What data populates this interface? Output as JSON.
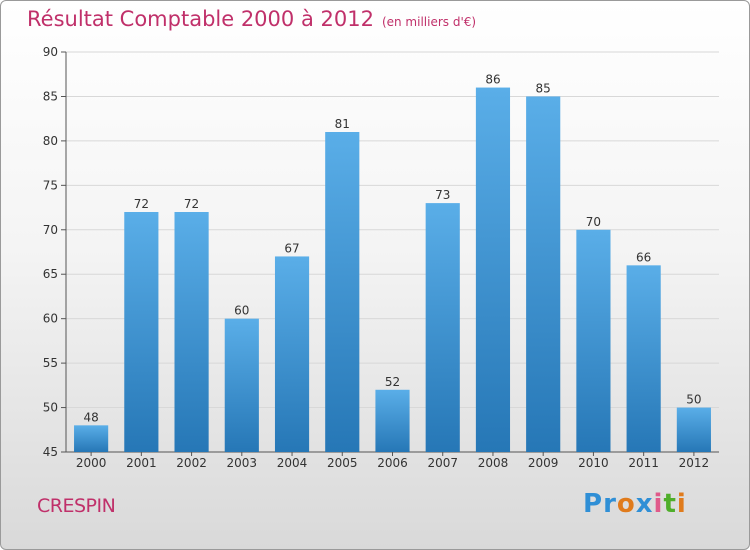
{
  "header": {
    "title": "Résultat Comptable 2000 à 2012",
    "subtitle": "(en milliers d'€)"
  },
  "footer": {
    "city": "CRESPIN",
    "brand": "Proxiti"
  },
  "colors": {
    "title": "#c0306a",
    "bar_top": "#5aaee8",
    "bar_bottom": "#2677b6",
    "grid": "#d8d8d8",
    "logo": [
      "#2f8fd6",
      "#2f8fd6",
      "#e07b1c",
      "#2f8fd6",
      "#e05a8a",
      "#4fae2a",
      "#e07b1c"
    ]
  },
  "chart_data": {
    "type": "bar",
    "title": "Résultat Comptable 2000 à 2012",
    "xlabel": "",
    "ylabel": "",
    "categories": [
      "2000",
      "2001",
      "2002",
      "2003",
      "2004",
      "2005",
      "2006",
      "2007",
      "2008",
      "2009",
      "2010",
      "2011",
      "2012"
    ],
    "values": [
      48,
      72,
      72,
      60,
      67,
      81,
      52,
      73,
      86,
      85,
      70,
      66,
      50
    ],
    "ylim": [
      45,
      90
    ],
    "yticks": [
      45,
      50,
      55,
      60,
      65,
      70,
      75,
      80,
      85,
      90
    ],
    "grid": true,
    "data_labels": true
  }
}
